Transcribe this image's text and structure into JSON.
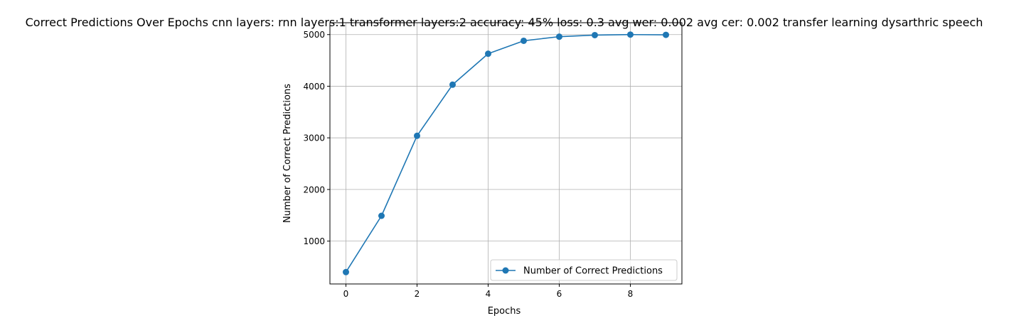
{
  "chart_data": {
    "type": "line",
    "title": "Correct Predictions Over Epochs cnn layers: rnn layers:1 transformer layers:2 accuracy: 45% loss: 0.3 avg wer: 0.002 avg cer: 0.002 transfer learning dysarthric speech",
    "xlabel": "Epochs",
    "ylabel": "Number of Correct Predictions",
    "xlim": [
      -0.45,
      9.45
    ],
    "ylim": [
      170,
      5230
    ],
    "xticks": [
      0,
      2,
      4,
      6,
      8
    ],
    "yticks": [
      1000,
      2000,
      3000,
      4000,
      5000
    ],
    "grid": true,
    "legend_position": "lower-right",
    "series": [
      {
        "name": "Number of Correct Predictions",
        "color": "#1f77b4",
        "marker": "circle",
        "x": [
          0,
          1,
          2,
          3,
          4,
          5,
          6,
          7,
          8,
          9
        ],
        "y": [
          400,
          1490,
          3040,
          4030,
          4630,
          4880,
          4960,
          4990,
          5000,
          4995
        ]
      }
    ]
  }
}
